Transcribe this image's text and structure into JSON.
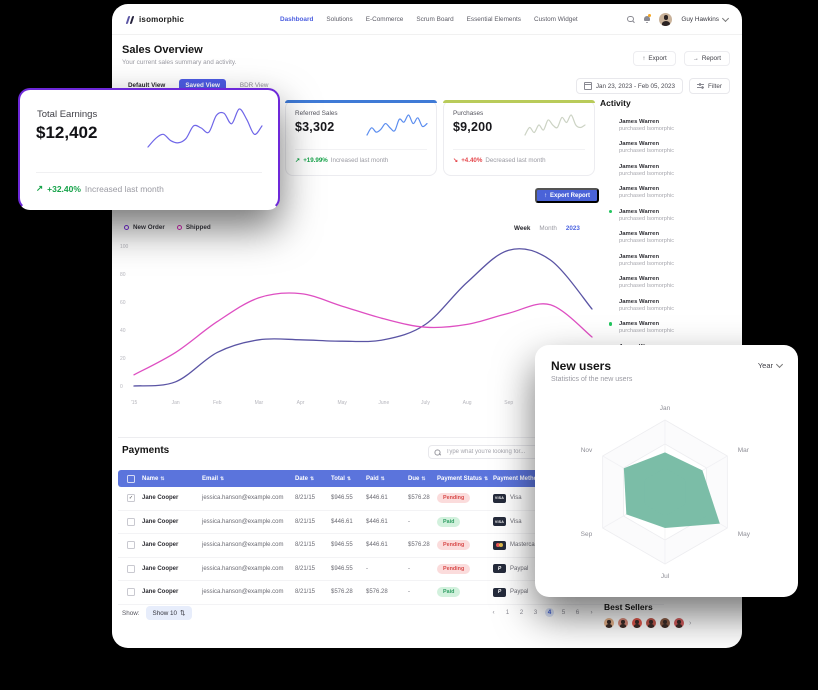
{
  "colors": {
    "accent_blue": "#4c5fe0",
    "table_header_blue": "#5b74dc",
    "positive_green": "#17a34a",
    "negative_red": "#e5484d",
    "highlight_ring_purple": "#6d28d9",
    "referred_accent": "#3f7ad6",
    "purchases_accent": "#b9cb5a",
    "radar_fill": "#74b9a2"
  },
  "icons": [
    "search-icon",
    "bell-icon",
    "chevron-down-icon",
    "calendar-icon",
    "filter-icon",
    "export-icon",
    "report-icon",
    "sort-icon",
    "check-icon",
    "visa-icon",
    "mastercard-icon",
    "paypal-icon",
    "trend-up-icon",
    "trend-down-icon"
  ],
  "nav": {
    "logo": "isomorphic",
    "items": [
      {
        "label": "Dashboard",
        "active": true
      },
      {
        "label": "Solutions",
        "active": false
      },
      {
        "label": "E-Commerce",
        "active": false
      },
      {
        "label": "Scrum Board",
        "active": false
      },
      {
        "label": "Essential Elements",
        "active": false
      },
      {
        "label": "Custom Widget",
        "active": false
      }
    ],
    "user": "Guy Hawkins"
  },
  "header": {
    "title": "Sales Overview",
    "subtitle": "Your current sales summary and activity.",
    "export_label": "Export",
    "report_label": "Report"
  },
  "view_tabs": [
    {
      "label": "Default View",
      "active": false
    },
    {
      "label": "Saved View",
      "active": true
    },
    {
      "label": "BDR View",
      "active": false
    }
  ],
  "filters": {
    "date_range": "Jan 23, 2023 - Feb 05, 2023",
    "filter_label": "Filter"
  },
  "stats": [
    {
      "label": "Total Earnings",
      "value": "$12,402",
      "delta": "+32.40%",
      "direction": "up",
      "note": "Increased last month",
      "spark_color": "#6f66e8",
      "spark": [
        22,
        30,
        34,
        28,
        26,
        30,
        42,
        40,
        36,
        52,
        54,
        44,
        58,
        48,
        34,
        42
      ]
    },
    {
      "label": "Referred Sales",
      "value": "$3,302",
      "delta": "+19.99%",
      "direction": "up",
      "note": "Increased last month",
      "spark_color": "#5b8def",
      "spark": [
        20,
        30,
        24,
        28,
        36,
        30,
        26,
        42,
        38,
        48,
        36,
        44,
        32,
        36
      ]
    },
    {
      "label": "Purchases",
      "value": "$9,200",
      "delta": "+4.40%",
      "direction": "down",
      "note": "Decreased last month",
      "spark_color": "#ccd3c4",
      "spark": [
        30,
        36,
        32,
        38,
        34,
        42,
        38,
        36,
        44,
        40,
        46,
        38,
        36,
        38
      ]
    }
  ],
  "export_report_label": "Export Report",
  "legend": [
    {
      "label": "New Order",
      "color": "#7b2fe0"
    },
    {
      "label": "Shipped",
      "color": "#d929b9"
    }
  ],
  "chart_controls": {
    "options": [
      "Week",
      "Month",
      "2023"
    ],
    "active": "2023"
  },
  "chart_data": [
    {
      "type": "line",
      "title": "Orders overview (New Order vs Shipped)",
      "categories": [
        "'15",
        "Jan",
        "Feb",
        "Mar",
        "Apr",
        "May",
        "June",
        "July",
        "Aug",
        "Sep",
        "Oct",
        ""
      ],
      "ylim": [
        0,
        100
      ],
      "yticks": [
        0,
        20,
        40,
        60,
        80,
        100
      ],
      "grid": false,
      "legend_position": "top-left",
      "series": [
        {
          "name": "New Order",
          "color": "#5a54a4",
          "values": [
            0,
            3,
            24,
            33,
            33,
            32,
            33,
            44,
            74,
            97,
            90,
            55
          ]
        },
        {
          "name": "Shipped",
          "color": "#de4fc2",
          "values": [
            8,
            24,
            46,
            63,
            66,
            57,
            48,
            42,
            44,
            52,
            58,
            35
          ]
        }
      ]
    },
    {
      "type": "radar",
      "title": "New users",
      "axes": [
        "Jan",
        "Mar",
        "May",
        "Jul",
        "Sep",
        "Nov"
      ],
      "values": [
        55,
        60,
        88,
        50,
        62,
        66
      ],
      "max": 100,
      "fill": "#74b9a2"
    }
  ],
  "activity": {
    "title": "Activity",
    "items": [
      {
        "name": "James Warren",
        "action": "purchased Isomorphic",
        "avatar": "photo",
        "online": false
      },
      {
        "name": "James Warren",
        "action": "purchased Isomorphic",
        "avatar": "photo",
        "online": false
      },
      {
        "name": "James Warren",
        "action": "purchased Isomorphic",
        "avatar": "photo",
        "online": false
      },
      {
        "name": "James Warren",
        "action": "purchased Isomorphic",
        "avatar": "photo",
        "online": false
      },
      {
        "name": "James Warren",
        "action": "purchased Isomorphic",
        "avatar": "photo",
        "online": true
      },
      {
        "name": "James Warren",
        "action": "purchased Isomorphic",
        "avatar": "dark",
        "online": false
      },
      {
        "name": "James Warren",
        "action": "purchased Isomorphic",
        "avatar": "dark",
        "online": false
      },
      {
        "name": "James Warren",
        "action": "purchased Isomorphic",
        "avatar": "initials",
        "initials": "AB",
        "online": false
      },
      {
        "name": "James Warren",
        "action": "purchased Isomorphic",
        "avatar": "dark",
        "online": false
      },
      {
        "name": "James Warren",
        "action": "purchased Isomorphic",
        "avatar": "initials",
        "initials": "AB",
        "online": true
      },
      {
        "name": "James Warren",
        "action": "purchased Isomorphic",
        "avatar": "initials",
        "initials": "AB",
        "online": false
      }
    ]
  },
  "payments": {
    "title": "Payments",
    "search_placeholder": "Type what you're looking for...",
    "columns": [
      "Name",
      "Email",
      "Date",
      "Total",
      "Paid",
      "Due",
      "Payment Status",
      "Payment Method"
    ],
    "rows": [
      {
        "checked": true,
        "name": "Jane Cooper",
        "email": "jessica.hanson@example.com",
        "date": "8/21/15",
        "total": "$946.55",
        "paid": "$446.61",
        "due": "$576.28",
        "status": "Pending",
        "method": "Visa"
      },
      {
        "checked": false,
        "name": "Jane Cooper",
        "email": "jessica.hanson@example.com",
        "date": "8/21/15",
        "total": "$446.61",
        "paid": "$446.61",
        "due": "-",
        "status": "Paid",
        "method": "Visa"
      },
      {
        "checked": false,
        "name": "Jane Cooper",
        "email": "jessica.hanson@example.com",
        "date": "8/21/15",
        "total": "$946.55",
        "paid": "$446.61",
        "due": "$576.28",
        "status": "Pending",
        "method": "Mastercard"
      },
      {
        "checked": false,
        "name": "Jane Cooper",
        "email": "jessica.hanson@example.com",
        "date": "8/21/15",
        "total": "$946.55",
        "paid": "-",
        "due": "-",
        "status": "Pending",
        "method": "Paypal"
      },
      {
        "checked": false,
        "name": "Jane Cooper",
        "email": "jessica.hanson@example.com",
        "date": "8/21/15",
        "total": "$576.28",
        "paid": "$576.28",
        "due": "-",
        "status": "Paid",
        "method": "Paypal"
      }
    ]
  },
  "table_footer": {
    "show_label": "Show:",
    "show_value": "Show 10",
    "pages": [
      "1",
      "2",
      "3",
      "4",
      "5",
      "6"
    ],
    "active_page": "4"
  },
  "new_users": {
    "title": "New users",
    "subtitle": "Statistics of the new users",
    "period": "Year"
  },
  "best_sellers": {
    "title": "Best Sellers",
    "avatar_colors": [
      "#e8b48c",
      "#d98a7a",
      "#e2574c",
      "#c2574c",
      "#8a5a44",
      "#d25b5b"
    ]
  }
}
